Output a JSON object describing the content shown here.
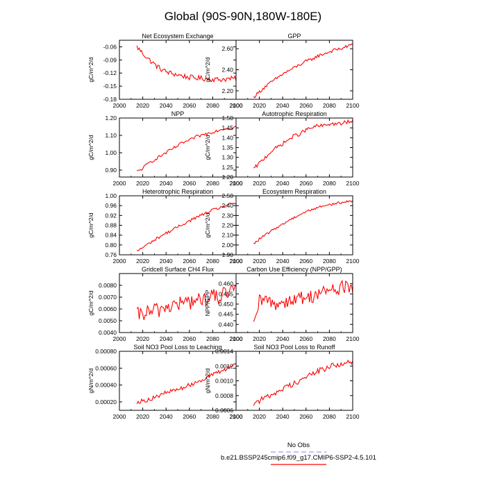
{
  "page": {
    "title": "Global (90S-90N,180W-180E)",
    "legend": {
      "entries": [
        {
          "label": "No Obs",
          "color": "#9999ff",
          "dash": true
        },
        {
          "label": "b.e21.BSSP245cmip6.f09_g17.CMIP6-SSP2-4.5.101",
          "color": "#ff0000",
          "dash": false
        }
      ]
    }
  },
  "chart_data": [
    {
      "type": "line",
      "title": "Net Ecosystem Exchange",
      "ylabel": "gC/m^2/d",
      "xlabel": "",
      "xlim": [
        2000,
        2100
      ],
      "xticks": [
        2000,
        2020,
        2040,
        2060,
        2080,
        2100
      ],
      "xtick_labels": [
        "2000",
        "2020",
        "2040",
        "2060",
        "2080",
        "2100"
      ],
      "ylim": [
        -0.18,
        -0.045
      ],
      "yticks": [
        -0.18,
        -0.15,
        -0.12,
        -0.09,
        -0.06
      ],
      "ytick_labels": [
        "-0.18",
        "-0.15",
        "-0.12",
        "-0.09",
        "-0.06"
      ],
      "series": [
        {
          "name": "b.e21.BSSP245cmip6.f09_g17.CMIP6-SSP2-4.5.101",
          "color": "#ff0000",
          "x": [
            2015,
            2020,
            2025,
            2030,
            2035,
            2040,
            2045,
            2050,
            2055,
            2060,
            2065,
            2070,
            2075,
            2080,
            2085,
            2090,
            2095,
            2100
          ],
          "y": [
            -0.06,
            -0.075,
            -0.088,
            -0.1,
            -0.11,
            -0.117,
            -0.121,
            -0.124,
            -0.127,
            -0.13,
            -0.131,
            -0.132,
            -0.133,
            -0.134,
            -0.135,
            -0.134,
            -0.133,
            -0.133
          ],
          "noise": 0.006
        }
      ]
    },
    {
      "type": "line",
      "title": "GPP",
      "ylabel": "gC/m^2/d",
      "xlabel": "",
      "xlim": [
        2000,
        2100
      ],
      "xticks": [
        2000,
        2020,
        2040,
        2060,
        2080,
        2100
      ],
      "xtick_labels": [
        "2000",
        "2020",
        "2040",
        "2060",
        "2080",
        "2100"
      ],
      "ylim": [
        2.12,
        2.68
      ],
      "yticks": [
        2.2,
        2.4,
        2.6
      ],
      "ytick_labels": [
        "2.20",
        "2.40",
        "2.60"
      ],
      "series": [
        {
          "name": "b.e21.BSSP245cmip6.f09_g17.CMIP6-SSP2-4.5.101",
          "color": "#ff0000",
          "x": [
            2015,
            2020,
            2025,
            2030,
            2035,
            2040,
            2045,
            2050,
            2055,
            2060,
            2065,
            2070,
            2075,
            2080,
            2085,
            2090,
            2095,
            2100
          ],
          "y": [
            2.14,
            2.19,
            2.24,
            2.28,
            2.32,
            2.36,
            2.39,
            2.42,
            2.45,
            2.48,
            2.5,
            2.53,
            2.55,
            2.57,
            2.59,
            2.6,
            2.62,
            2.64
          ],
          "noise": 0.015
        }
      ]
    },
    {
      "type": "line",
      "title": "NPP",
      "ylabel": "gC/m^2/d",
      "xlabel": "",
      "xlim": [
        2000,
        2100
      ],
      "xticks": [
        2000,
        2020,
        2040,
        2060,
        2080,
        2100
      ],
      "xtick_labels": [
        "2000",
        "2020",
        "2040",
        "2060",
        "2080",
        "2100"
      ],
      "ylim": [
        0.86,
        1.2
      ],
      "yticks": [
        0.9,
        1.0,
        1.1,
        1.2
      ],
      "ytick_labels": [
        "0.90",
        "1.00",
        "1.10",
        "1.20"
      ],
      "series": [
        {
          "name": "b.e21.BSSP245cmip6.f09_g17.CMIP6-SSP2-4.5.101",
          "color": "#ff0000",
          "x": [
            2015,
            2020,
            2025,
            2030,
            2035,
            2040,
            2045,
            2050,
            2055,
            2060,
            2065,
            2070,
            2075,
            2080,
            2085,
            2090,
            2095,
            2100
          ],
          "y": [
            0.89,
            0.91,
            0.94,
            0.96,
            0.98,
            1.0,
            1.02,
            1.04,
            1.06,
            1.07,
            1.09,
            1.1,
            1.11,
            1.12,
            1.13,
            1.14,
            1.14,
            1.15
          ],
          "noise": 0.009
        }
      ]
    },
    {
      "type": "line",
      "title": "Autotrophic Respiration",
      "ylabel": "gC/m^2/d",
      "xlabel": "",
      "xlim": [
        2000,
        2100
      ],
      "xticks": [
        2000,
        2020,
        2040,
        2060,
        2080,
        2100
      ],
      "xtick_labels": [
        "2000",
        "2020",
        "2040",
        "2060",
        "2080",
        "2100"
      ],
      "ylim": [
        1.2,
        1.5
      ],
      "yticks": [
        1.2,
        1.25,
        1.3,
        1.35,
        1.4,
        1.45,
        1.5
      ],
      "ytick_labels": [
        "1.20",
        "1.25",
        "1.30",
        "1.35",
        "1.40",
        "1.45",
        "1.50"
      ],
      "series": [
        {
          "name": "b.e21.BSSP245cmip6.f09_g17.CMIP6-SSP2-4.5.101",
          "color": "#ff0000",
          "x": [
            2015,
            2020,
            2025,
            2030,
            2035,
            2040,
            2045,
            2050,
            2055,
            2060,
            2065,
            2070,
            2075,
            2080,
            2085,
            2090,
            2095,
            2100
          ],
          "y": [
            1.24,
            1.27,
            1.3,
            1.33,
            1.35,
            1.37,
            1.39,
            1.41,
            1.42,
            1.44,
            1.45,
            1.46,
            1.46,
            1.47,
            1.47,
            1.47,
            1.48,
            1.48
          ],
          "noise": 0.01
        }
      ]
    },
    {
      "type": "line",
      "title": "Heterotrophic Respiration",
      "ylabel": "gC/m^2/d",
      "xlabel": "",
      "xlim": [
        2000,
        2100
      ],
      "xticks": [
        2000,
        2020,
        2040,
        2060,
        2080,
        2100
      ],
      "xtick_labels": [
        "2000",
        "2020",
        "2040",
        "2060",
        "2080",
        "2100"
      ],
      "ylim": [
        0.76,
        1.0
      ],
      "yticks": [
        0.76,
        0.8,
        0.84,
        0.88,
        0.92,
        0.96,
        1.0
      ],
      "ytick_labels": [
        "0.76",
        "0.80",
        "0.84",
        "0.88",
        "0.92",
        "0.96",
        "1.00"
      ],
      "series": [
        {
          "name": "b.e21.BSSP245cmip6.f09_g17.CMIP6-SSP2-4.5.101",
          "color": "#ff0000",
          "x": [
            2015,
            2020,
            2025,
            2030,
            2035,
            2040,
            2045,
            2050,
            2055,
            2060,
            2065,
            2070,
            2075,
            2080,
            2085,
            2090,
            2095,
            2100
          ],
          "y": [
            0.775,
            0.79,
            0.805,
            0.82,
            0.835,
            0.848,
            0.86,
            0.873,
            0.886,
            0.898,
            0.91,
            0.921,
            0.931,
            0.941,
            0.95,
            0.958,
            0.965,
            0.972
          ],
          "noise": 0.006
        }
      ]
    },
    {
      "type": "line",
      "title": "Ecosystem Respiration",
      "ylabel": "gC/m^2/d",
      "xlabel": "",
      "xlim": [
        2000,
        2100
      ],
      "xticks": [
        2000,
        2020,
        2040,
        2060,
        2080,
        2100
      ],
      "xtick_labels": [
        "2000",
        "2020",
        "2040",
        "2060",
        "2080",
        "2100"
      ],
      "ylim": [
        1.9,
        2.5
      ],
      "yticks": [
        1.9,
        2.0,
        2.1,
        2.2,
        2.3,
        2.4,
        2.5
      ],
      "ytick_labels": [
        "1.90",
        "2.00",
        "2.10",
        "2.20",
        "2.30",
        "2.40",
        "2.50"
      ],
      "series": [
        {
          "name": "b.e21.BSSP245cmip6.f09_g17.CMIP6-SSP2-4.5.101",
          "color": "#ff0000",
          "x": [
            2015,
            2020,
            2025,
            2030,
            2035,
            2040,
            2045,
            2050,
            2055,
            2060,
            2065,
            2070,
            2075,
            2080,
            2085,
            2090,
            2095,
            2100
          ],
          "y": [
            2.01,
            2.06,
            2.1,
            2.14,
            2.18,
            2.21,
            2.25,
            2.28,
            2.31,
            2.34,
            2.36,
            2.38,
            2.4,
            2.41,
            2.42,
            2.43,
            2.44,
            2.45
          ],
          "noise": 0.012
        }
      ]
    },
    {
      "type": "line",
      "title": "Gridcell Surface CH4 Flux",
      "ylabel": "gC/m^2/d",
      "xlabel": "",
      "xlim": [
        2000,
        2100
      ],
      "xticks": [
        2000,
        2020,
        2040,
        2060,
        2080,
        2100
      ],
      "xtick_labels": [
        "2000",
        "2020",
        "2040",
        "2060",
        "2080",
        "2100"
      ],
      "ylim": [
        0.004,
        0.009
      ],
      "yticks": [
        0.004,
        0.005,
        0.006,
        0.007,
        0.008
      ],
      "ytick_labels": [
        "0.0040",
        "0.0050",
        "0.0060",
        "0.0070",
        "0.0080"
      ],
      "series": [
        {
          "name": "b.e21.BSSP245cmip6.f09_g17.CMIP6-SSP2-4.5.101",
          "color": "#ff0000",
          "x": [
            2015,
            2020,
            2025,
            2030,
            2035,
            2040,
            2045,
            2050,
            2055,
            2060,
            2065,
            2070,
            2075,
            2080,
            2085,
            2090,
            2095,
            2100
          ],
          "y": [
            0.0054,
            0.0056,
            0.0057,
            0.0058,
            0.006,
            0.0062,
            0.0063,
            0.0064,
            0.0065,
            0.0066,
            0.0067,
            0.0068,
            0.0069,
            0.007,
            0.0071,
            0.0072,
            0.0073,
            0.0075
          ],
          "noise": 0.0007
        }
      ]
    },
    {
      "type": "line",
      "title": "Carbon Use Efficiency (NPP/GPP)",
      "ylabel": "NPP/GPP",
      "xlabel": "",
      "xlim": [
        2000,
        2100
      ],
      "xticks": [
        2000,
        2020,
        2040,
        2060,
        2080,
        2100
      ],
      "xtick_labels": [
        "2000",
        "2020",
        "2040",
        "2060",
        "2080",
        "2100"
      ],
      "ylim": [
        0.436,
        0.465
      ],
      "yticks": [
        0.44,
        0.445,
        0.45,
        0.455,
        0.46
      ],
      "ytick_labels": [
        "0.440",
        "0.445",
        "0.450",
        "0.455",
        "0.460"
      ],
      "series": [
        {
          "name": "b.e21.BSSP245cmip6.f09_g17.CMIP6-SSP2-4.5.101",
          "color": "#ff0000",
          "x": [
            2015,
            2018,
            2020,
            2025,
            2030,
            2035,
            2040,
            2045,
            2050,
            2055,
            2060,
            2065,
            2070,
            2075,
            2080,
            2085,
            2090,
            2095,
            2100
          ],
          "y": [
            0.438,
            0.446,
            0.451,
            0.452,
            0.451,
            0.45,
            0.451,
            0.452,
            0.452,
            0.453,
            0.453,
            0.454,
            0.455,
            0.456,
            0.457,
            0.457,
            0.458,
            0.459,
            0.458
          ],
          "noise": 0.0035
        }
      ]
    },
    {
      "type": "line",
      "title": "Soil NO3 Pool Loss to Leaching",
      "ylabel": "gN/m^2/d",
      "xlabel": "",
      "xlim": [
        2000,
        2100
      ],
      "xticks": [
        2000,
        2020,
        2040,
        2060,
        2080,
        2100
      ],
      "xtick_labels": [
        "2000",
        "2020",
        "2040",
        "2060",
        "2080",
        "2100"
      ],
      "ylim": [
        0.0001,
        0.0008
      ],
      "yticks": [
        0.0002,
        0.0004,
        0.0006,
        0.0008
      ],
      "ytick_labels": [
        "0.00020",
        "0.00040",
        "0.00060",
        "0.00080"
      ],
      "series": [
        {
          "name": "b.e21.BSSP245cmip6.f09_g17.CMIP6-SSP2-4.5.101",
          "color": "#ff0000",
          "x": [
            2015,
            2020,
            2025,
            2030,
            2035,
            2040,
            2045,
            2050,
            2055,
            2060,
            2065,
            2070,
            2075,
            2080,
            2085,
            2090,
            2095,
            2100
          ],
          "y": [
            0.0002,
            0.00021,
            0.00023,
            0.00025,
            0.00028,
            0.00031,
            0.00033,
            0.00035,
            0.00037,
            0.0004,
            0.00043,
            0.00046,
            0.00049,
            0.00052,
            0.00055,
            0.00058,
            0.00062,
            0.00066
          ],
          "noise": 2.5e-05
        }
      ]
    },
    {
      "type": "line",
      "title": "Soil NO3 Pool Loss to Runoff",
      "ylabel": "gN/m^2/d",
      "xlabel": "",
      "xlim": [
        2000,
        2100
      ],
      "xticks": [
        2000,
        2020,
        2040,
        2060,
        2080,
        2100
      ],
      "xtick_labels": [
        "2000",
        "2020",
        "2040",
        "2060",
        "2080",
        "2100"
      ],
      "ylim": [
        0.0006,
        0.0014
      ],
      "yticks": [
        0.0006,
        0.0008,
        0.001,
        0.0012,
        0.0014
      ],
      "ytick_labels": [
        "0.0006",
        "0.0008",
        "0.0010",
        "0.0012",
        "0.0014"
      ],
      "series": [
        {
          "name": "b.e21.BSSP245cmip6.f09_g17.CMIP6-SSP2-4.5.101",
          "color": "#ff0000",
          "x": [
            2015,
            2020,
            2025,
            2030,
            2035,
            2040,
            2045,
            2050,
            2055,
            2060,
            2065,
            2070,
            2075,
            2080,
            2085,
            2090,
            2095,
            2100
          ],
          "y": [
            0.0007,
            0.00073,
            0.00077,
            0.00081,
            0.00085,
            0.00089,
            0.00093,
            0.00097,
            0.00101,
            0.00105,
            0.00109,
            0.00113,
            0.00116,
            0.00119,
            0.00121,
            0.00123,
            0.00124,
            0.00125
          ],
          "noise": 4e-05
        }
      ]
    }
  ]
}
